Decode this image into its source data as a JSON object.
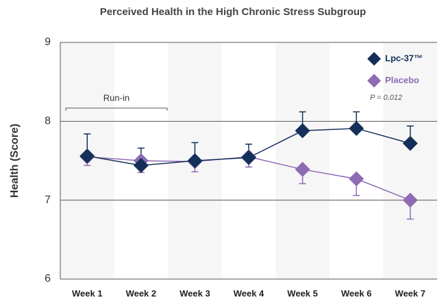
{
  "chart_data": {
    "type": "line",
    "title": "Perceived Health in the High Chronic Stress Subgroup",
    "y_label": "Health (Score)",
    "categories": [
      "Week 1",
      "Week 2",
      "Week 3",
      "Week 4",
      "Week 5",
      "Week 6",
      "Week 7"
    ],
    "series": [
      {
        "name": "Lpc-37™",
        "color": "#14305a",
        "values": [
          7.56,
          7.44,
          7.5,
          7.54,
          7.88,
          7.91,
          7.72
        ],
        "errors": [
          0.28,
          0.22,
          0.23,
          0.17,
          0.24,
          0.21,
          0.22
        ],
        "error_direction": "up"
      },
      {
        "name": "Placebo",
        "color": "#8e6bb5",
        "values": [
          7.55,
          7.5,
          7.49,
          7.55,
          7.39,
          7.27,
          7.0
        ],
        "errors": [
          0.11,
          0.15,
          0.13,
          0.13,
          0.18,
          0.21,
          0.24
        ],
        "error_direction": "down"
      }
    ],
    "ylim": [
      6,
      9
    ],
    "yticks": [
      6,
      7,
      8,
      9
    ],
    "grid": true,
    "legend": "upper right",
    "annotations": [
      "Run-in",
      "P = 0.012"
    ]
  }
}
